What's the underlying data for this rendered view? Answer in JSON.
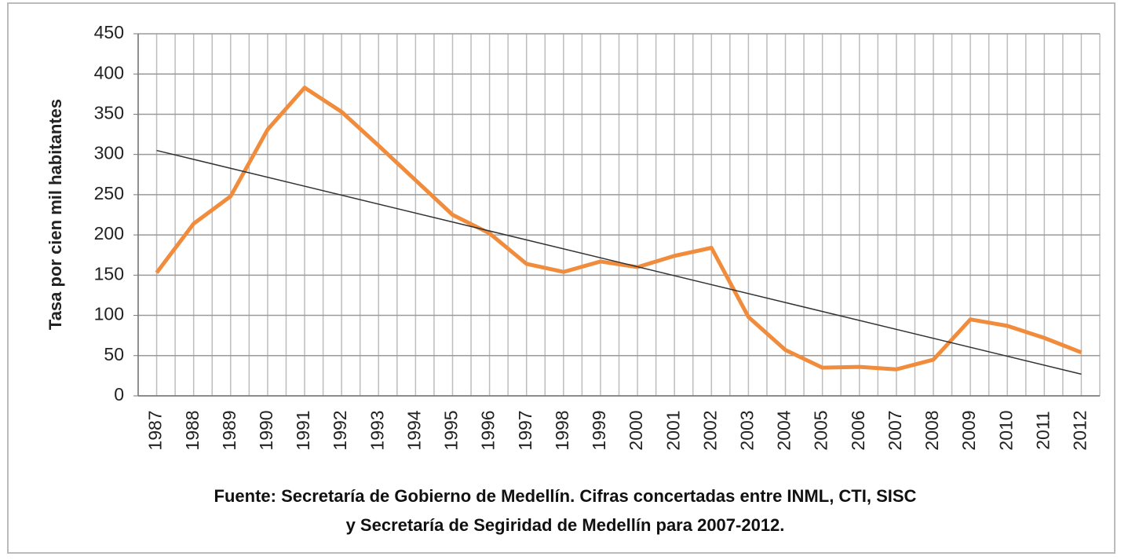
{
  "chart_data": {
    "type": "line",
    "ylabel": "Tasa por cien mil habitantes",
    "categories": [
      "1987",
      "1988",
      "1989",
      "1990",
      "1991",
      "1992",
      "1993",
      "1994",
      "1995",
      "1996",
      "1997",
      "1998",
      "1999",
      "2000",
      "2001",
      "2002",
      "2003",
      "2004",
      "2005",
      "2006",
      "2007",
      "2008",
      "2009",
      "2010",
      "2011",
      "2012"
    ],
    "series": [
      {
        "color": "#f08c3c",
        "values": [
          153,
          214,
          248,
          331,
          383,
          353,
          311,
          268,
          225,
          202,
          164,
          154,
          167,
          160,
          174,
          184,
          98,
          57,
          35,
          36,
          33,
          45,
          95,
          87,
          72,
          54
        ]
      }
    ],
    "trend": {
      "color": "#333333",
      "values": [
        305,
        27
      ]
    },
    "ylim": [
      0,
      450
    ],
    "yticks": [
      0,
      50,
      100,
      150,
      200,
      250,
      300,
      350,
      400,
      450
    ],
    "grid": true,
    "caption": [
      "Fuente: Secretaría de Gobierno de Medellín.  Cifras concertadas entre INML, CTI, SISC",
      "y Secretaría de Segiridad de Medellín para 2007-2012."
    ]
  }
}
